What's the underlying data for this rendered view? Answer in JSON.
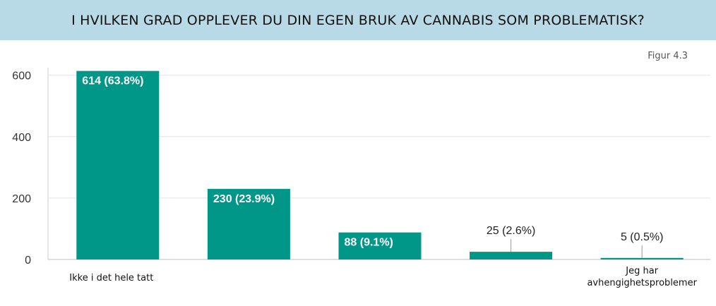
{
  "header": {
    "title": "I HVILKEN GRAD OPPLEVER DU DIN EGEN BRUK AV CANNABIS SOM PROBLEMATISK?"
  },
  "figure_label": "Figur 4.3",
  "chart_data": {
    "type": "bar",
    "categories": [
      "Ikke i det hele tatt",
      "",
      "",
      "",
      "Jeg har avhengighetsproblemer"
    ],
    "values": [
      614,
      230,
      88,
      25,
      5
    ],
    "data_labels": [
      "614 (63.8%)",
      "230 (23.9%)",
      "88 (9.1%)",
      "25 (2.6%)",
      "5 (0.5%)"
    ],
    "yticks": [
      0,
      200,
      400,
      600
    ],
    "ylim": [
      0,
      620
    ],
    "grid": true,
    "bar_color": "#009688",
    "title": "",
    "xlabel": "",
    "ylabel": ""
  }
}
